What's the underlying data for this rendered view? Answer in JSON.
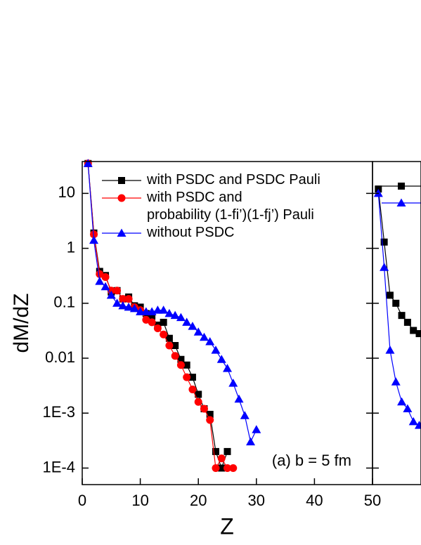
{
  "chart_data": [
    {
      "type": "line",
      "xlabel": "Z",
      "ylabel": "dM/dZ",
      "annotation": "(a) b = 5 fm",
      "log_y": true,
      "xlim": [
        0,
        50
      ],
      "xticks": [
        0,
        10,
        20,
        30,
        40,
        50
      ],
      "ylim": [
        5e-05,
        38
      ],
      "yticks": [
        10,
        1,
        0.1,
        0.01,
        {
          "value": 0.001,
          "label": "1E-3"
        },
        {
          "value": 0.0001,
          "label": "1E-4"
        }
      ],
      "legend": "upper right",
      "series": [
        {
          "name": "with PSDC and PSDC Pauli",
          "color": "#000000",
          "marker": "square",
          "x": [
            1,
            2,
            3,
            4,
            5,
            6,
            7,
            8,
            9,
            10,
            11,
            12,
            13,
            14,
            15,
            16,
            17,
            18,
            19,
            20,
            21,
            22,
            23,
            24,
            25
          ],
          "values": [
            35,
            1.9,
            0.38,
            0.32,
            0.16,
            0.17,
            0.12,
            0.13,
            0.09,
            0.085,
            0.065,
            0.058,
            0.04,
            0.045,
            0.023,
            0.017,
            0.0095,
            0.0075,
            0.0045,
            0.0022,
            0.0012,
            0.00095,
            0.0002,
            0.0001,
            0.0002
          ]
        },
        {
          "name": "with PSDC and\nprobability (1-fi’)(1-fj’) Pauli",
          "color": "#ff0000",
          "marker": "circle",
          "x": [
            1,
            2,
            3,
            4,
            5,
            6,
            7,
            8,
            9,
            10,
            11,
            12,
            13,
            14,
            15,
            16,
            17,
            18,
            19,
            20,
            21,
            22,
            23,
            24,
            25,
            26
          ],
          "values": [
            35,
            1.8,
            0.34,
            0.3,
            0.17,
            0.17,
            0.12,
            0.12,
            0.085,
            0.075,
            0.05,
            0.045,
            0.035,
            0.027,
            0.017,
            0.011,
            0.0075,
            0.0045,
            0.0027,
            0.0016,
            0.0012,
            0.00075,
            0.0001,
            0.00015,
            0.0001,
            0.0001
          ]
        },
        {
          "name": "without PSDC",
          "color": "#0000ff",
          "marker": "triangle",
          "x": [
            1,
            2,
            3,
            4,
            5,
            6,
            7,
            8,
            9,
            10,
            11,
            12,
            13,
            14,
            15,
            16,
            17,
            18,
            19,
            20,
            21,
            22,
            23,
            24,
            25,
            26,
            27,
            28,
            29,
            30
          ],
          "values": [
            35,
            1.4,
            0.25,
            0.2,
            0.14,
            0.1,
            0.09,
            0.085,
            0.08,
            0.07,
            0.07,
            0.07,
            0.075,
            0.075,
            0.065,
            0.06,
            0.055,
            0.045,
            0.038,
            0.03,
            0.024,
            0.02,
            0.014,
            0.0095,
            0.0065,
            0.0035,
            0.0018,
            0.0009,
            0.0003,
            0.0005
          ]
        }
      ]
    },
    {
      "type": "line",
      "log_y": true,
      "xlim": [
        50,
        58.3
      ],
      "ylim": [
        5e-05,
        38
      ],
      "series": [
        {
          "color": "#000000",
          "marker": "square",
          "x": [
            51,
            52,
            53,
            54,
            55,
            56,
            57,
            58
          ],
          "values": [
            12,
            1.3,
            0.14,
            0.1,
            0.06,
            0.045,
            0.032,
            0.028
          ]
        },
        {
          "color": "#0000ff",
          "marker": "triangle",
          "x": [
            51,
            52,
            53,
            54,
            55,
            56,
            57,
            58
          ],
          "values": [
            10,
            0.45,
            0.014,
            0.0037,
            0.0016,
            0.0012,
            0.0007,
            0.0006
          ]
        }
      ]
    }
  ]
}
